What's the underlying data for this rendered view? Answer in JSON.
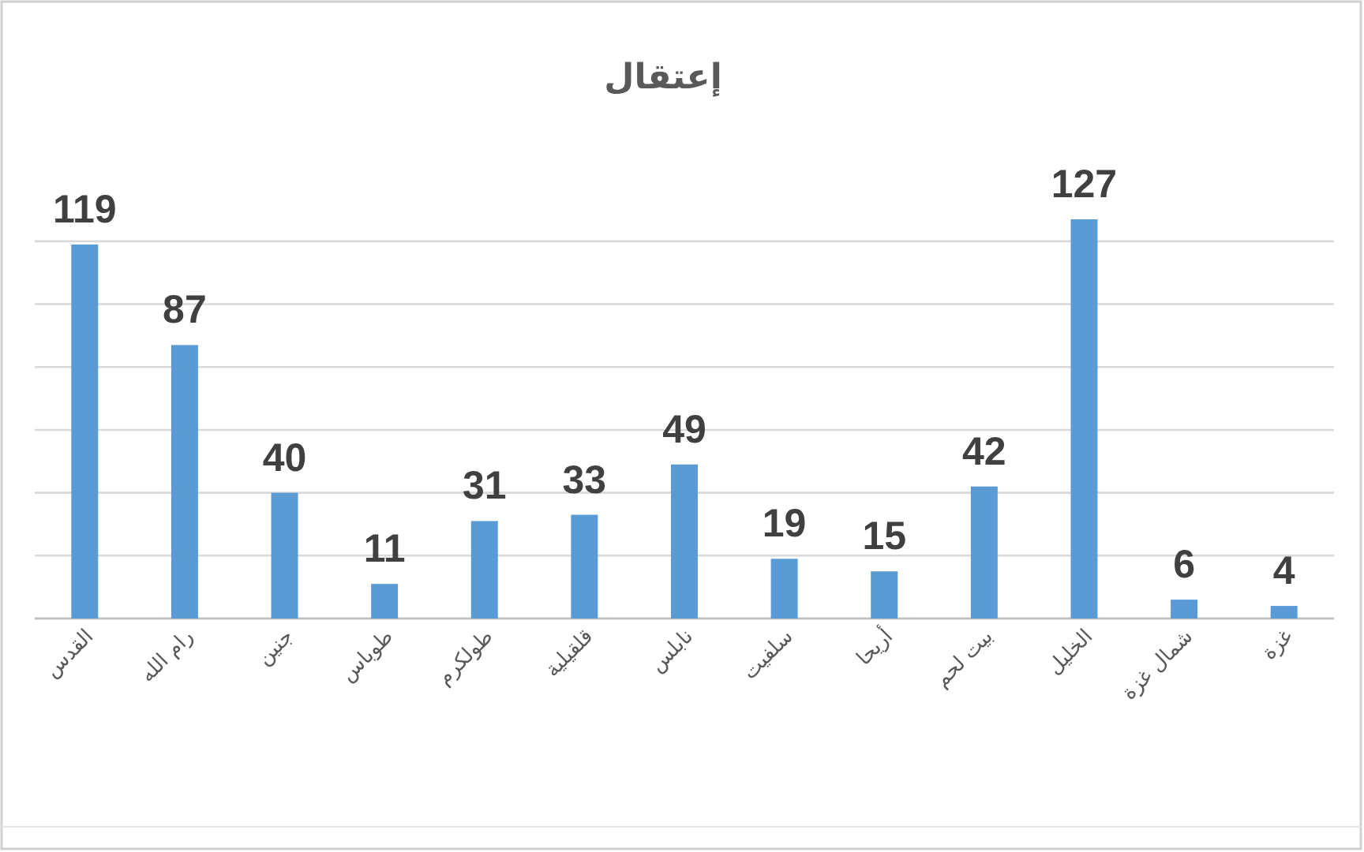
{
  "chart_data": {
    "type": "bar",
    "title": "إعتقال",
    "categories": [
      "القدس",
      "رام الله",
      "جنين",
      "طوباس",
      "طولكرم",
      "قلقيلية",
      "نابلس",
      "سلفيت",
      "أريحا",
      "بيت لحم",
      "الخليل",
      "شمال غزة",
      "غزة"
    ],
    "values": [
      119,
      87,
      40,
      11,
      31,
      33,
      49,
      19,
      15,
      42,
      127,
      6,
      4
    ],
    "color": "#5b9bd5",
    "yticks": [
      {
        "value": 0,
        "label": null
      },
      {
        "value": 20,
        "label": null
      },
      {
        "value": 40,
        "label": null
      },
      {
        "value": 60,
        "label": null
      },
      {
        "value": 80,
        "label": null
      },
      {
        "value": 100,
        "label": null
      },
      {
        "value": 120,
        "label": null
      }
    ],
    "tick_labels": "x",
    "grid": "y",
    "data_labels": true
  }
}
